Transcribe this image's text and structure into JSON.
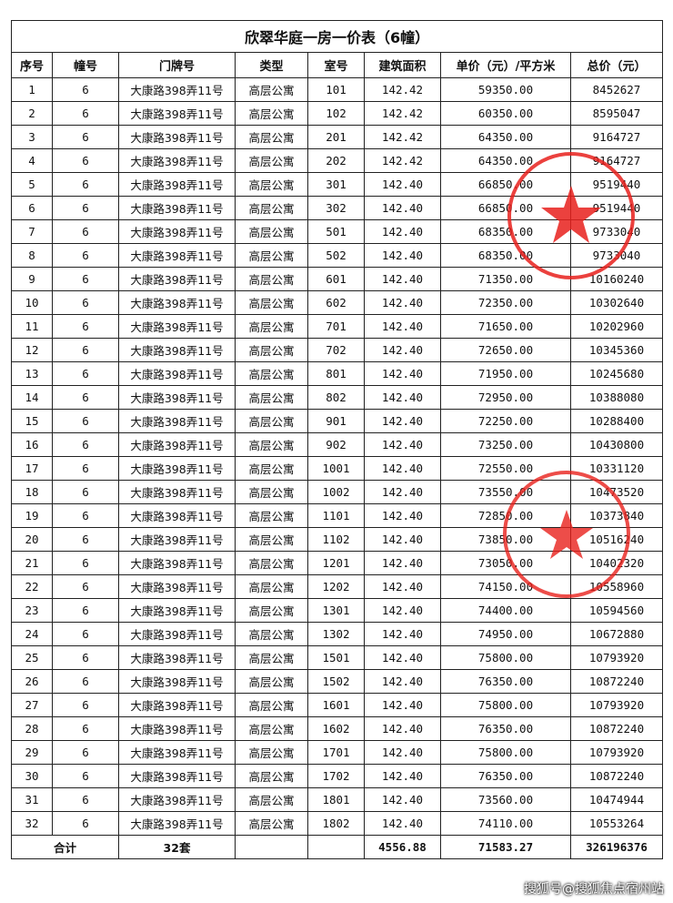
{
  "title": "欣翠华庭一房一价表（6幢）",
  "headers": [
    "序号",
    "幢号",
    "门牌号",
    "类型",
    "室号",
    "建筑面积",
    "单价（元）/平方米",
    "总价（元）"
  ],
  "rows": [
    [
      "1",
      "6",
      "大康路398弄11号",
      "高层公寓",
      "101",
      "142.42",
      "59350.00",
      "8452627"
    ],
    [
      "2",
      "6",
      "大康路398弄11号",
      "高层公寓",
      "102",
      "142.42",
      "60350.00",
      "8595047"
    ],
    [
      "3",
      "6",
      "大康路398弄11号",
      "高层公寓",
      "201",
      "142.42",
      "64350.00",
      "9164727"
    ],
    [
      "4",
      "6",
      "大康路398弄11号",
      "高层公寓",
      "202",
      "142.42",
      "64350.00",
      "9164727"
    ],
    [
      "5",
      "6",
      "大康路398弄11号",
      "高层公寓",
      "301",
      "142.40",
      "66850.00",
      "9519440"
    ],
    [
      "6",
      "6",
      "大康路398弄11号",
      "高层公寓",
      "302",
      "142.40",
      "66850.00",
      "9519440"
    ],
    [
      "7",
      "6",
      "大康路398弄11号",
      "高层公寓",
      "501",
      "142.40",
      "68350.00",
      "9733040"
    ],
    [
      "8",
      "6",
      "大康路398弄11号",
      "高层公寓",
      "502",
      "142.40",
      "68350.00",
      "9733040"
    ],
    [
      "9",
      "6",
      "大康路398弄11号",
      "高层公寓",
      "601",
      "142.40",
      "71350.00",
      "10160240"
    ],
    [
      "10",
      "6",
      "大康路398弄11号",
      "高层公寓",
      "602",
      "142.40",
      "72350.00",
      "10302640"
    ],
    [
      "11",
      "6",
      "大康路398弄11号",
      "高层公寓",
      "701",
      "142.40",
      "71650.00",
      "10202960"
    ],
    [
      "12",
      "6",
      "大康路398弄11号",
      "高层公寓",
      "702",
      "142.40",
      "72650.00",
      "10345360"
    ],
    [
      "13",
      "6",
      "大康路398弄11号",
      "高层公寓",
      "801",
      "142.40",
      "71950.00",
      "10245680"
    ],
    [
      "14",
      "6",
      "大康路398弄11号",
      "高层公寓",
      "802",
      "142.40",
      "72950.00",
      "10388080"
    ],
    [
      "15",
      "6",
      "大康路398弄11号",
      "高层公寓",
      "901",
      "142.40",
      "72250.00",
      "10288400"
    ],
    [
      "16",
      "6",
      "大康路398弄11号",
      "高层公寓",
      "902",
      "142.40",
      "73250.00",
      "10430800"
    ],
    [
      "17",
      "6",
      "大康路398弄11号",
      "高层公寓",
      "1001",
      "142.40",
      "72550.00",
      "10331120"
    ],
    [
      "18",
      "6",
      "大康路398弄11号",
      "高层公寓",
      "1002",
      "142.40",
      "73550.00",
      "10473520"
    ],
    [
      "19",
      "6",
      "大康路398弄11号",
      "高层公寓",
      "1101",
      "142.40",
      "72850.00",
      "10373840"
    ],
    [
      "20",
      "6",
      "大康路398弄11号",
      "高层公寓",
      "1102",
      "142.40",
      "73850.00",
      "10516240"
    ],
    [
      "21",
      "6",
      "大康路398弄11号",
      "高层公寓",
      "1201",
      "142.40",
      "73050.00",
      "10402320"
    ],
    [
      "22",
      "6",
      "大康路398弄11号",
      "高层公寓",
      "1202",
      "142.40",
      "74150.00",
      "10558960"
    ],
    [
      "23",
      "6",
      "大康路398弄11号",
      "高层公寓",
      "1301",
      "142.40",
      "74400.00",
      "10594560"
    ],
    [
      "24",
      "6",
      "大康路398弄11号",
      "高层公寓",
      "1302",
      "142.40",
      "74950.00",
      "10672880"
    ],
    [
      "25",
      "6",
      "大康路398弄11号",
      "高层公寓",
      "1501",
      "142.40",
      "75800.00",
      "10793920"
    ],
    [
      "26",
      "6",
      "大康路398弄11号",
      "高层公寓",
      "1502",
      "142.40",
      "76350.00",
      "10872240"
    ],
    [
      "27",
      "6",
      "大康路398弄11号",
      "高层公寓",
      "1601",
      "142.40",
      "75800.00",
      "10793920"
    ],
    [
      "28",
      "6",
      "大康路398弄11号",
      "高层公寓",
      "1602",
      "142.40",
      "76350.00",
      "10872240"
    ],
    [
      "29",
      "6",
      "大康路398弄11号",
      "高层公寓",
      "1701",
      "142.40",
      "75800.00",
      "10793920"
    ],
    [
      "30",
      "6",
      "大康路398弄11号",
      "高层公寓",
      "1702",
      "142.40",
      "76350.00",
      "10872240"
    ],
    [
      "31",
      "6",
      "大康路398弄11号",
      "高层公寓",
      "1801",
      "142.40",
      "73560.00",
      "10474944"
    ],
    [
      "32",
      "6",
      "大康路398弄11号",
      "高层公寓",
      "1802",
      "142.40",
      "74110.00",
      "10553264"
    ]
  ],
  "total": {
    "label": "合计",
    "units": "32套",
    "area": "4556.88",
    "avg_price": "71583.27",
    "total_price": "326196376"
  },
  "watermark": "搜狐号@搜狐焦点宿州站",
  "colors": {
    "stamp": "#e8201c",
    "border": "#222222"
  }
}
